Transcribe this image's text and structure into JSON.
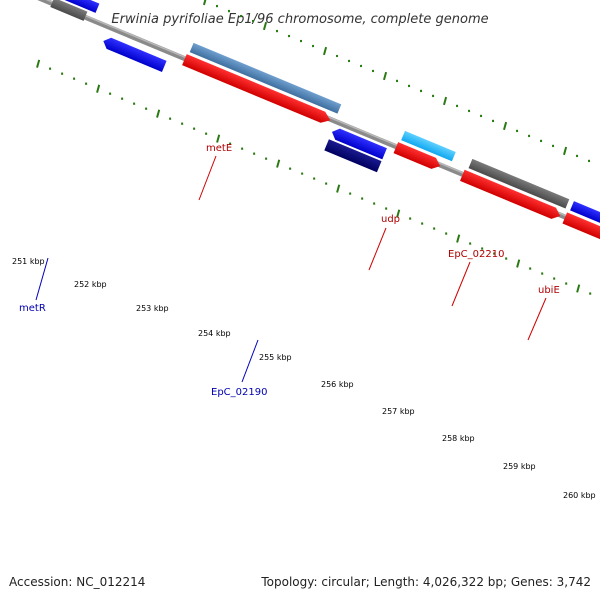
{
  "title": "Erwinia pyrifoliae Ep1/96 chromosome, complete genome",
  "footer": {
    "accession": "Accession: NC_012214",
    "summary": "Topology: circular; Length: 4,026,322 bp; Genes: 3,742"
  },
  "ticks": [
    "251 kbp",
    "252 kbp",
    "253 kbp",
    "254 kbp",
    "255 kbp",
    "256 kbp",
    "257 kbp",
    "258 kbp",
    "259 kbp",
    "260 kbp"
  ],
  "gene_labels": [
    {
      "name": "metE",
      "color": "#b00000"
    },
    {
      "name": "udp",
      "color": "#b00000"
    },
    {
      "name": "EpC_02210",
      "color": "#b00000"
    },
    {
      "name": "ubiE",
      "color": "#b00000"
    },
    {
      "name": "metR",
      "color": "#0000b0"
    },
    {
      "name": "EpC_02190",
      "color": "#0000b0"
    }
  ],
  "colors": {
    "forward_gene": "#ff0000",
    "reverse_gene": "#0000ff",
    "other_gene": "#666666",
    "tick_green": "#2a7a14",
    "backbone": "#808080"
  }
}
